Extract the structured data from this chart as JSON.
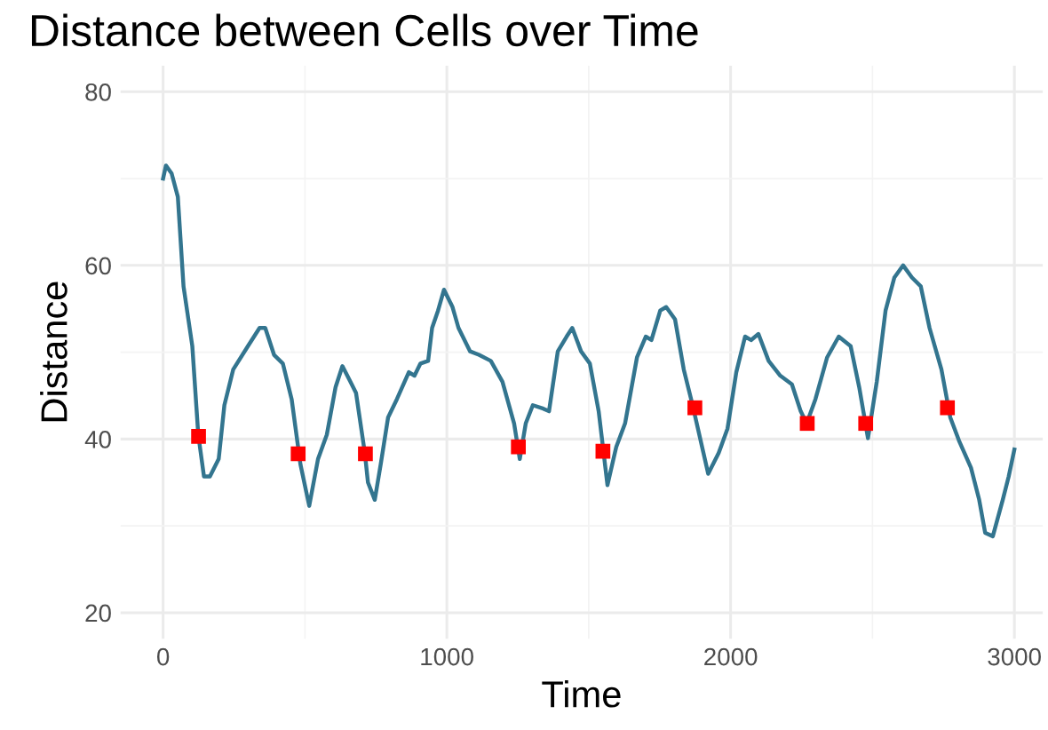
{
  "chart_data": {
    "type": "line",
    "title": "Distance between Cells over Time",
    "xlabel": "Time",
    "ylabel": "Distance",
    "xlim": [
      -150,
      3100
    ],
    "ylim": [
      17,
      83
    ],
    "xticks": [
      0,
      1000,
      2000,
      3000
    ],
    "yticks": [
      20,
      40,
      60,
      80
    ],
    "grid": true,
    "legend": false,
    "series": [
      {
        "color": "#33758f",
        "marker": "none",
        "line_style": "solid",
        "x": [
          0,
          10,
          30,
          52,
          72,
          103,
          124,
          144,
          165,
          196,
          216,
          247,
          299,
          340,
          360,
          391,
          422,
          453,
          484,
          515,
          546,
          577,
          608,
          632,
          660,
          680,
          711,
          722,
          746,
          767,
          793,
          824,
          866,
          886,
          907,
          934,
          948,
          969,
          990,
          1020,
          1041,
          1082,
          1113,
          1155,
          1196,
          1237,
          1257,
          1278,
          1303,
          1340,
          1360,
          1391,
          1422,
          1442,
          1473,
          1504,
          1535,
          1566,
          1597,
          1628,
          1670,
          1701,
          1721,
          1752,
          1773,
          1804,
          1835,
          1866,
          1921,
          1958,
          1989,
          2020,
          2051,
          2072,
          2098,
          2134,
          2175,
          2216,
          2247,
          2268,
          2299,
          2340,
          2381,
          2423,
          2453,
          2484,
          2515,
          2546,
          2577,
          2608,
          2639,
          2670,
          2701,
          2743,
          2774,
          2805,
          2847,
          2876,
          2897,
          2924,
          2959,
          2980,
          3000
        ],
        "values": [
          70,
          71.5,
          70.6,
          67.9,
          57.6,
          50.7,
          40.5,
          35.7,
          35.7,
          37.7,
          43.9,
          48,
          50.7,
          52.8,
          52.8,
          49.7,
          48.7,
          44.6,
          37.1,
          32.3,
          37.7,
          40.5,
          46,
          48.4,
          46.6,
          45.3,
          38.4,
          35,
          33,
          37.1,
          42.5,
          44.6,
          47.7,
          47.3,
          48.7,
          49,
          52.8,
          54.8,
          57.2,
          55.2,
          52.8,
          50.1,
          49.7,
          49,
          46.6,
          41.8,
          37.7,
          41.8,
          43.9,
          43.5,
          43.2,
          50.1,
          51.8,
          52.8,
          50.1,
          48.7,
          43.2,
          34.7,
          39.1,
          41.8,
          49.4,
          51.8,
          51.4,
          54.8,
          55.2,
          53.8,
          48,
          43.9,
          36,
          38.4,
          41.2,
          47.7,
          51.8,
          51.4,
          52.1,
          49,
          47.3,
          46.3,
          43.2,
          41.8,
          44.6,
          49.4,
          51.8,
          50.7,
          46,
          40.1,
          46.6,
          54.8,
          58.6,
          60,
          58.6,
          57.6,
          52.8,
          48,
          42.5,
          39.8,
          36.7,
          33,
          29.2,
          28.8,
          33,
          35.7,
          38.8
        ]
      },
      {
        "type": "scatter",
        "color": "#ff0000",
        "marker": "square",
        "x": [
          125,
          476,
          713,
          1252,
          1550,
          1874,
          2270,
          2476,
          2764
        ],
        "values": [
          40.3,
          38.3,
          38.3,
          39.1,
          38.6,
          43.6,
          41.8,
          41.8,
          43.6
        ]
      }
    ]
  }
}
